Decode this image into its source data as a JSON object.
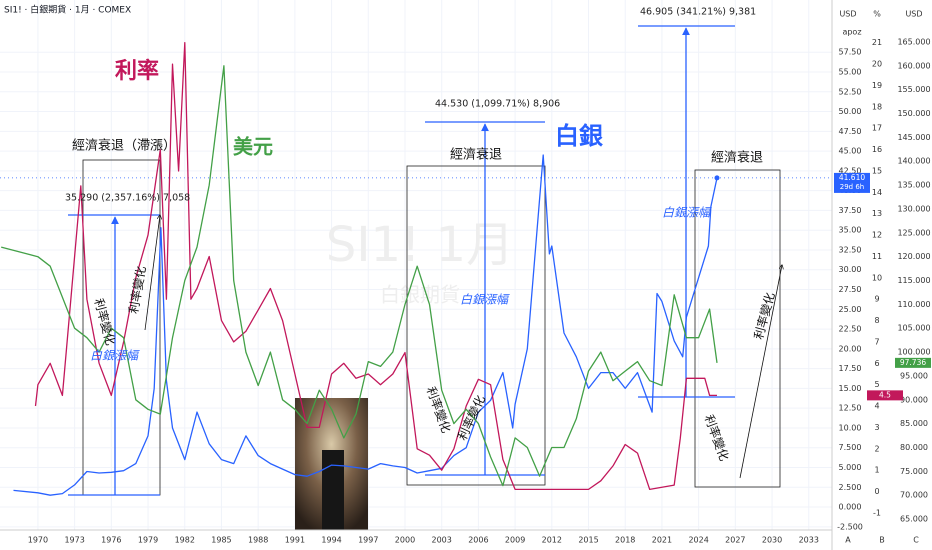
{
  "chart_data": {
    "type": "line",
    "title": "SI1! · 白銀期貨 · 1月 · COMEX",
    "watermark": "SI1! 1月",
    "watermark_sub": "白銀期貨",
    "axis_headers": [
      "USD",
      "%",
      "USD"
    ],
    "axis_footers": [
      "A",
      "B",
      "C"
    ],
    "currency_note": "apoz",
    "grid": true,
    "xlim": [
      1966.9,
      2034.9
    ],
    "xticks": [
      1970,
      1973,
      1976,
      1979,
      1982,
      1985,
      1988,
      1991,
      1994,
      1997,
      2000,
      2003,
      2006,
      2009,
      2012,
      2015,
      2018,
      2021,
      2024,
      2027,
      2030,
      2033
    ],
    "ylim": [
      -2.9,
      64.1
    ],
    "yticks": [
      {
        "value": 57.5,
        "label": "57.50"
      },
      {
        "value": 55,
        "label": "55.00"
      },
      {
        "value": 52.5,
        "label": "52.50"
      },
      {
        "value": 50,
        "label": "50.00"
      },
      {
        "value": 47.5,
        "label": "47.50"
      },
      {
        "value": 45,
        "label": "45.00"
      },
      {
        "value": 42.5,
        "label": "42.50"
      },
      {
        "value": 40,
        "label": "40.00"
      },
      {
        "value": 37.5,
        "label": "37.50"
      },
      {
        "value": 35,
        "label": "35.00"
      },
      {
        "value": 32.5,
        "label": "32.50"
      },
      {
        "value": 30,
        "label": "30.00"
      },
      {
        "value": 27.5,
        "label": "27.50"
      },
      {
        "value": 25,
        "label": "25.00"
      },
      {
        "value": 22.5,
        "label": "22.50"
      },
      {
        "value": 20,
        "label": "20.00"
      },
      {
        "value": 17.5,
        "label": "17.50"
      },
      {
        "value": 15,
        "label": "15.00"
      },
      {
        "value": 12.5,
        "label": "12.50"
      },
      {
        "value": 10,
        "label": "10.00"
      },
      {
        "value": 7.5,
        "label": "7.500"
      },
      {
        "value": 5,
        "label": "5.000"
      },
      {
        "value": 2.5,
        "label": "2.500"
      },
      {
        "value": 0,
        "label": "0.000"
      },
      {
        "value": -2.5,
        "label": "-2.500"
      }
    ],
    "y2lim": [
      -1.8,
      23
    ],
    "y2ticks": [
      21,
      20,
      19,
      18,
      17,
      16,
      15,
      14,
      13,
      12,
      11,
      10,
      9,
      8,
      7,
      6,
      5,
      4,
      3,
      2,
      1,
      0,
      -1
    ],
    "y3lim": [
      62.7,
      173.8
    ],
    "y3ticks": [
      {
        "value": 165,
        "label": "165.000"
      },
      {
        "value": 160,
        "label": "160.000"
      },
      {
        "value": 155,
        "label": "155.000"
      },
      {
        "value": 150,
        "label": "150.000"
      },
      {
        "value": 145,
        "label": "145.000"
      },
      {
        "value": 140,
        "label": "140.000"
      },
      {
        "value": 135,
        "label": "135.000"
      },
      {
        "value": 130,
        "label": "130.000"
      },
      {
        "value": 125,
        "label": "125.000"
      },
      {
        "value": 120,
        "label": "120.000"
      },
      {
        "value": 115,
        "label": "115.000"
      },
      {
        "value": 110,
        "label": "110.000"
      },
      {
        "value": 105,
        "label": "105.000"
      },
      {
        "value": 100,
        "label": "100.000"
      },
      {
        "value": 95,
        "label": "95.000"
      },
      {
        "value": 90,
        "label": "90.000"
      },
      {
        "value": 85,
        "label": "85.000"
      },
      {
        "value": 80,
        "label": "80.000"
      },
      {
        "value": 75,
        "label": "75.000"
      },
      {
        "value": 70,
        "label": "70.000"
      },
      {
        "value": 65,
        "label": "65.000"
      }
    ],
    "series": [
      {
        "name": "SI1!",
        "color": "#2962ff",
        "axis": "y",
        "last_label": "41.610",
        "countdown": "29d 6h",
        "x": [
          1968,
          1970,
          1971,
          1972,
          1973,
          1974,
          1975,
          1976,
          1977,
          1978,
          1979,
          1979.5,
          1980.05,
          1980.5,
          1981,
          1982,
          1983,
          1984,
          1985,
          1986,
          1987,
          1988,
          1989,
          1990,
          1991,
          1992,
          1993,
          1994,
          1995,
          1996,
          1997,
          1998,
          1999,
          2000,
          2001,
          2002,
          2003,
          2004,
          2005,
          2006,
          2007,
          2008,
          2008.8,
          2009,
          2010,
          2011.3,
          2011.8,
          2012,
          2013,
          2014,
          2015,
          2016,
          2017,
          2018,
          2019,
          2020.2,
          2020.6,
          2021,
          2022,
          2022.7,
          2023,
          2024,
          2024.8,
          2025,
          2025.5
        ],
        "values": [
          2.1,
          1.8,
          1.5,
          1.7,
          2.8,
          4.5,
          4.3,
          4.4,
          4.6,
          5.5,
          9,
          15,
          35.3,
          16,
          10,
          6,
          12,
          8,
          6,
          5.5,
          9,
          6.5,
          5.5,
          4.8,
          4.1,
          3.9,
          4.5,
          5.3,
          5.2,
          5.0,
          4.8,
          5.5,
          5.2,
          5.0,
          4.3,
          4.6,
          4.9,
          6.5,
          7.5,
          12,
          13.5,
          17,
          10,
          13,
          20,
          44.5,
          32,
          33,
          22,
          19,
          15,
          17,
          17,
          15,
          17,
          12,
          27,
          26,
          21,
          19,
          24,
          29,
          33,
          38,
          41.61
        ]
      },
      {
        "name": "利率",
        "color": "#c2185b",
        "axis": "y2",
        "last_label": "4.5",
        "x": [
          1969.8,
          1970,
          1971,
          1972,
          1973.5,
          1974,
          1975,
          1976,
          1977,
          1978,
          1979,
          1980,
          1980.5,
          1981,
          1981.5,
          1982,
          1982.5,
          1983,
          1984,
          1985,
          1986,
          1987,
          1988,
          1989,
          1990,
          1991,
          1992,
          1993,
          1994,
          1995,
          1996,
          1997,
          1998,
          1999,
          2000,
          2001,
          2002,
          2003,
          2004,
          2005,
          2006,
          2007,
          2008,
          2009,
          2015,
          2016,
          2017,
          2018,
          2019,
          2020,
          2022,
          2022.5,
          2023,
          2024.5,
          2024.9,
          2025.5
        ],
        "values": [
          4,
          5,
          6,
          4.5,
          14.3,
          9,
          6,
          4.5,
          7,
          10,
          12,
          16,
          9,
          20,
          15,
          21,
          9,
          9.5,
          11,
          8,
          7,
          7.5,
          8.5,
          9.5,
          8,
          5.5,
          3,
          3,
          5.5,
          6,
          5.3,
          5.5,
          5,
          5.5,
          6.5,
          2,
          1.7,
          1,
          2,
          4,
          5.25,
          5,
          1.5,
          0.1,
          0.1,
          0.5,
          1.2,
          2.2,
          1.8,
          0.1,
          0.3,
          2.5,
          5.3,
          5.3,
          4.5,
          4.5
        ]
      },
      {
        "name": "美元",
        "color": "#43a047",
        "axis": "y3",
        "last_label": "97.736",
        "x": [
          1967,
          1970,
          1971,
          1973,
          1974,
          1975,
          1976,
          1977,
          1978,
          1979,
          1980,
          1981,
          1982,
          1983,
          1984,
          1985.2,
          1986,
          1987,
          1988,
          1989,
          1990,
          1991,
          1992,
          1993,
          1994,
          1995,
          1996,
          1997,
          1998,
          1999,
          2000,
          2001,
          2002,
          2003,
          2004,
          2005,
          2006,
          2007,
          2008,
          2009,
          2010,
          2011,
          2012,
          2013,
          2014,
          2015,
          2016,
          2017,
          2018,
          2019,
          2020,
          2021,
          2022,
          2023,
          2024,
          2024.9,
          2025.5
        ],
        "values": [
          122,
          120,
          118,
          105,
          103,
          100,
          105,
          103,
          90,
          88,
          87,
          103,
          115,
          122,
          135,
          160,
          115,
          100,
          93,
          100,
          90,
          88,
          85,
          92,
          88,
          82,
          87,
          98,
          97,
          100,
          110,
          118,
          110,
          92,
          85,
          88,
          85,
          78,
          72,
          82,
          80,
          74,
          80,
          80,
          86,
          96,
          100,
          94,
          96,
          98,
          94,
          93,
          112,
          103,
          103,
          109,
          97.736
        ]
      }
    ],
    "annotations": {
      "rate": "利率",
      "dollar": "美元",
      "silver": "白銀",
      "boxes": [
        "經濟衰退（滯漲）",
        "經濟衰退",
        "經濟衰退"
      ],
      "measures": [
        "35.290 (2,357.16%) 7,058",
        "44.530 (1,099.71%) 8,906",
        "46.905 (341.21%) 9,381"
      ],
      "rise": [
        "白銀漲幅",
        "白銀漲幅",
        "白銀漲幅"
      ],
      "change": [
        "利率變化",
        "利率變化",
        "利率變化",
        "利率變化",
        "利率變化",
        "利率變化"
      ]
    }
  }
}
